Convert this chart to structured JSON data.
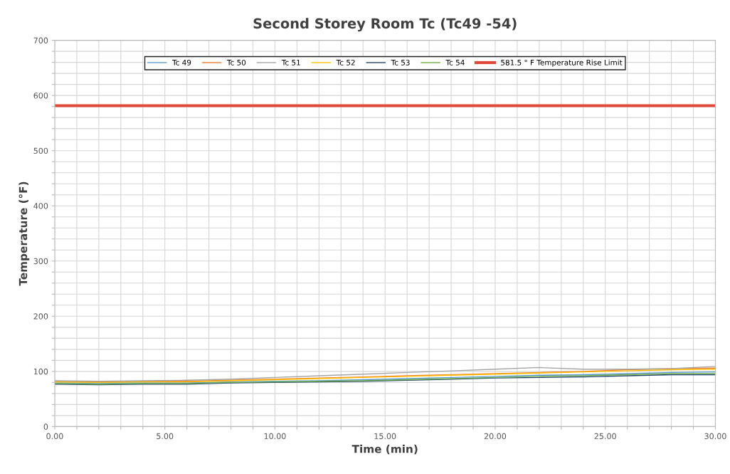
{
  "chart_data": {
    "type": "line",
    "title": "Second Storey Room Tc (Tc49 -54)",
    "xlabel": "Time (min)",
    "ylabel": "Temperature (°F)",
    "x": [
      0,
      2,
      4,
      6,
      8,
      10,
      12,
      14,
      16,
      18,
      20,
      22,
      24,
      26,
      28,
      30
    ],
    "series": [
      {
        "name": "Tc 49",
        "color": "#5b9bd5",
        "values": [
          79,
          78,
          79,
          79,
          81,
          82,
          83,
          85,
          87,
          89,
          91,
          93,
          94,
          96,
          98,
          99
        ]
      },
      {
        "name": "Tc 50",
        "color": "#ed7d31",
        "values": [
          82,
          81,
          82,
          82,
          84,
          86,
          88,
          90,
          92,
          94,
          96,
          98,
          100,
          103,
          105,
          106
        ]
      },
      {
        "name": "Tc 51",
        "color": "#a5a5a5",
        "values": [
          83,
          82,
          83,
          84,
          86,
          89,
          92,
          95,
          98,
          101,
          104,
          107,
          104,
          104,
          105,
          109
        ]
      },
      {
        "name": "Tc 52",
        "color": "#ffc000",
        "values": [
          81,
          80,
          81,
          81,
          83,
          85,
          87,
          89,
          91,
          93,
          95,
          97,
          99,
          101,
          103,
          104
        ]
      },
      {
        "name": "Tc 53",
        "color": "#264478",
        "values": [
          77,
          76,
          77,
          77,
          79,
          80,
          81,
          82,
          84,
          86,
          88,
          89,
          90,
          92,
          94,
          94
        ]
      },
      {
        "name": "Tc 54",
        "color": "#70ad47",
        "values": [
          78,
          77,
          78,
          78,
          80,
          81,
          82,
          83,
          85,
          87,
          89,
          91,
          92,
          94,
          96,
          96
        ]
      }
    ],
    "ref_lines": [
      {
        "axis": "y",
        "value": 581.5,
        "label": "581.5 ° F Temperature Rise Limit",
        "color": "#e0483a"
      }
    ],
    "xlim": [
      0,
      30
    ],
    "xticks": [
      {
        "value": 0,
        "label": "0.00"
      },
      {
        "value": 1,
        "label": null
      },
      {
        "value": 2,
        "label": null
      },
      {
        "value": 3,
        "label": null
      },
      {
        "value": 4,
        "label": null
      },
      {
        "value": 5,
        "label": "5.00"
      },
      {
        "value": 6,
        "label": null
      },
      {
        "value": 7,
        "label": null
      },
      {
        "value": 8,
        "label": null
      },
      {
        "value": 9,
        "label": null
      },
      {
        "value": 10,
        "label": "10.00"
      },
      {
        "value": 11,
        "label": null
      },
      {
        "value": 12,
        "label": null
      },
      {
        "value": 13,
        "label": null
      },
      {
        "value": 14,
        "label": null
      },
      {
        "value": 15,
        "label": "15.00"
      },
      {
        "value": 16,
        "label": null
      },
      {
        "value": 17,
        "label": null
      },
      {
        "value": 18,
        "label": null
      },
      {
        "value": 19,
        "label": null
      },
      {
        "value": 20,
        "label": "20.00"
      },
      {
        "value": 21,
        "label": null
      },
      {
        "value": 22,
        "label": null
      },
      {
        "value": 23,
        "label": null
      },
      {
        "value": 24,
        "label": null
      },
      {
        "value": 25,
        "label": "25.00"
      },
      {
        "value": 26,
        "label": null
      },
      {
        "value": 27,
        "label": null
      },
      {
        "value": 28,
        "label": null
      },
      {
        "value": 29,
        "label": null
      },
      {
        "value": 30,
        "label": "30.00"
      }
    ],
    "ylim": [
      0,
      700
    ],
    "yticks": [
      0,
      {
        "value": 20,
        "label": null
      },
      {
        "value": 40,
        "label": null
      },
      {
        "value": 60,
        "label": null
      },
      {
        "value": 80,
        "label": null
      },
      100,
      {
        "value": 120,
        "label": null
      },
      {
        "value": 140,
        "label": null
      },
      {
        "value": 160,
        "label": null
      },
      {
        "value": 180,
        "label": null
      },
      200,
      {
        "value": 220,
        "label": null
      },
      {
        "value": 240,
        "label": null
      },
      {
        "value": 260,
        "label": null
      },
      {
        "value": 280,
        "label": null
      },
      300,
      {
        "value": 320,
        "label": null
      },
      {
        "value": 340,
        "label": null
      },
      {
        "value": 360,
        "label": null
      },
      {
        "value": 380,
        "label": null
      },
      400,
      {
        "value": 420,
        "label": null
      },
      {
        "value": 440,
        "label": null
      },
      {
        "value": 460,
        "label": null
      },
      {
        "value": 480,
        "label": null
      },
      500,
      {
        "value": 520,
        "label": null
      },
      {
        "value": 540,
        "label": null
      },
      {
        "value": 560,
        "label": null
      },
      {
        "value": 580,
        "label": null
      },
      600,
      {
        "value": 620,
        "label": null
      },
      {
        "value": 640,
        "label": null
      },
      {
        "value": 660,
        "label": null
      },
      {
        "value": 680,
        "label": null
      },
      700
    ],
    "grid": true,
    "legend": "top",
    "marker": "none",
    "line_style": "solid"
  }
}
